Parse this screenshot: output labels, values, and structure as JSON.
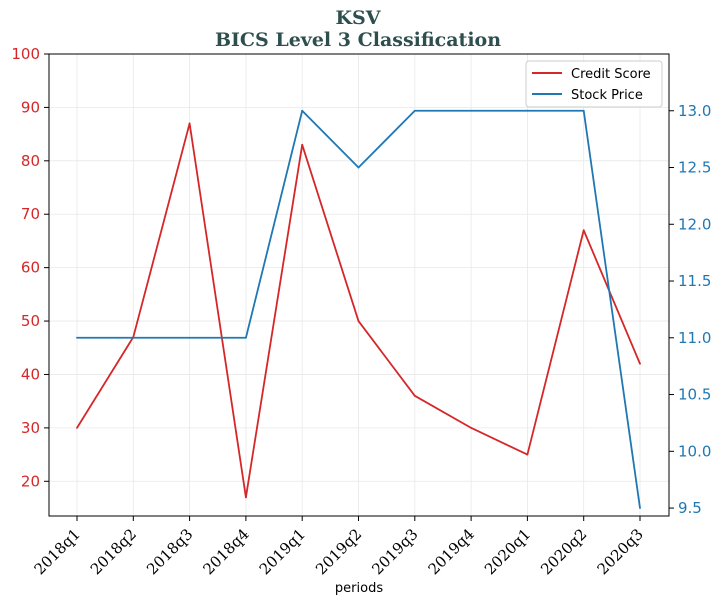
{
  "chart_data": {
    "type": "line",
    "title": "KSV",
    "subtitle": "BICS Level 3 Classification",
    "xlabel": "periods",
    "categories": [
      "2018q1",
      "2018q2",
      "2018q3",
      "2018q4",
      "2019q1",
      "2019q2",
      "2019q3",
      "2019q4",
      "2020q1",
      "2020q2",
      "2020q3"
    ],
    "series": [
      {
        "name": "Credit Score",
        "axis": "left",
        "color": "#d62728",
        "values": [
          30,
          47,
          87,
          17,
          83,
          50,
          36,
          30,
          25,
          67,
          42
        ]
      },
      {
        "name": "Stock Price",
        "axis": "right",
        "color": "#1f77b4",
        "values": [
          11.0,
          11.0,
          11.0,
          11.0,
          13.0,
          12.5,
          13.0,
          13.0,
          13.0,
          13.0,
          9.5
        ]
      }
    ],
    "ylim_left": [
      13.5,
      100
    ],
    "yticks_left": [
      "20",
      "30",
      "40",
      "50",
      "60",
      "70",
      "80",
      "90",
      "100"
    ],
    "ylim_right": [
      9.43,
      13.5
    ],
    "yticks_right": [
      "9.5",
      "10.0",
      "10.5",
      "11.0",
      "11.5",
      "12.0",
      "12.5",
      "13.0"
    ],
    "grid": true,
    "legend_position": "top-right"
  }
}
